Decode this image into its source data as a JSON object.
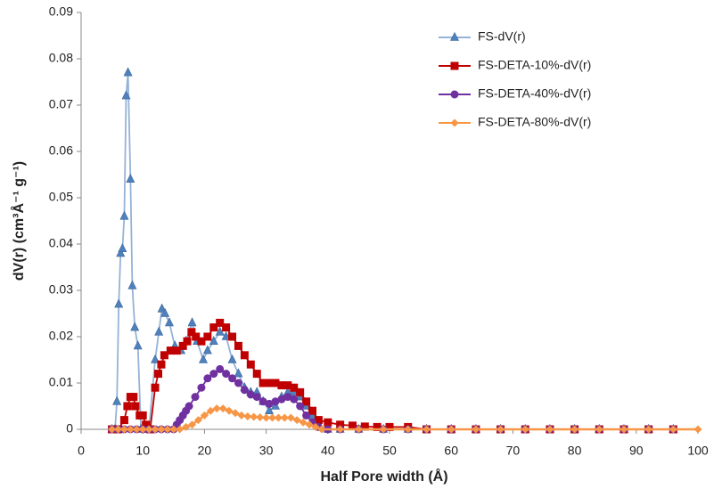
{
  "chart_data": {
    "type": "line",
    "xlabel": "Half Pore width (Å)",
    "ylabel": "dV(r) (cm³Å⁻¹ g⁻¹)",
    "xlim": [
      0,
      100
    ],
    "xticks": [
      0,
      10,
      20,
      30,
      40,
      50,
      60,
      70,
      80,
      90,
      100
    ],
    "ylim": [
      0,
      0.09
    ],
    "yticks": [
      0,
      0.01,
      0.02,
      0.03,
      0.04,
      0.05,
      0.06,
      0.07,
      0.08,
      0.09
    ],
    "legend": "top-right",
    "series": [
      {
        "name": "FS-dV(r)",
        "color": "#4f81bd",
        "line_color": "#95b3d7",
        "marker": "triangle",
        "x": [
          5,
          5.5,
          5.8,
          6.1,
          6.4,
          6.7,
          7,
          7.3,
          7.6,
          8,
          8.3,
          8.7,
          9.2,
          9.7,
          10.5,
          11,
          12,
          12.6,
          13.1,
          13.6,
          14.3,
          15.2,
          16.2,
          17,
          18,
          18.8,
          19.8,
          20.5,
          21.5,
          22.5,
          23.5,
          24.5,
          25.5,
          26.5,
          27.5,
          28.5,
          29.5,
          30.5,
          31.5,
          32.5,
          33.5,
          34.5,
          35.5,
          36.5,
          37.5,
          38.5,
          40,
          42,
          45,
          49,
          53,
          56,
          60,
          64,
          68,
          72,
          76,
          80,
          84,
          88,
          92,
          96
        ],
        "values": [
          0,
          0,
          0.006,
          0.027,
          0.038,
          0.039,
          0.046,
          0.072,
          0.077,
          0.054,
          0.031,
          0.022,
          0.018,
          0,
          0,
          0,
          0.015,
          0.021,
          0.026,
          0.025,
          0.023,
          0.018,
          0.017,
          0.019,
          0.023,
          0.019,
          0.015,
          0.017,
          0.019,
          0.021,
          0.02,
          0.015,
          0.012,
          0.009,
          0.008,
          0.008,
          0.006,
          0.004,
          0.005,
          0.007,
          0.008,
          0.008,
          0.007,
          0.005,
          0.003,
          0.001,
          0,
          0,
          0,
          0,
          0,
          0,
          0,
          0,
          0,
          0,
          0,
          0,
          0,
          0,
          0,
          0
        ]
      },
      {
        "name": "FS-DETA-10%-dV(r)",
        "color": "#c00000",
        "line_color": "#c00000",
        "marker": "square",
        "x": [
          5,
          6,
          7,
          7.5,
          8,
          8.5,
          8.8,
          9.5,
          10,
          10.5,
          11.2,
          12,
          12.5,
          13,
          13.5,
          14.5,
          15.5,
          16.5,
          17.2,
          17.9,
          18.6,
          19.5,
          20.5,
          21.5,
          22.5,
          23.5,
          24.5,
          25.5,
          26.5,
          27.5,
          28.5,
          29.5,
          30.5,
          31.5,
          32.5,
          33.5,
          34.5,
          35.5,
          36.5,
          37.5,
          38.5,
          40,
          42,
          44,
          46,
          48,
          50,
          53,
          56,
          60,
          64,
          68,
          72,
          76,
          80,
          84,
          88,
          92,
          96
        ],
        "values": [
          0,
          0,
          0.002,
          0.005,
          0.007,
          0.007,
          0.005,
          0.003,
          0.003,
          0.001,
          0,
          0.009,
          0.012,
          0.014,
          0.016,
          0.017,
          0.017,
          0.018,
          0.019,
          0.021,
          0.02,
          0.019,
          0.02,
          0.022,
          0.023,
          0.022,
          0.02,
          0.018,
          0.016,
          0.014,
          0.012,
          0.01,
          0.01,
          0.01,
          0.0095,
          0.0095,
          0.009,
          0.008,
          0.006,
          0.004,
          0.002,
          0.0015,
          0.001,
          0.0008,
          0.0006,
          0.0005,
          0.0005,
          0.0005,
          0,
          0,
          0,
          0,
          0,
          0,
          0,
          0,
          0,
          0,
          0
        ]
      },
      {
        "name": "FS-DETA-40%-dV(r)",
        "color": "#7030a0",
        "line_color": "#7030a0",
        "marker": "circle",
        "x": [
          5,
          6,
          7,
          8,
          9,
          10,
          11,
          12,
          13,
          14,
          15,
          15.5,
          16,
          16.5,
          17,
          17.5,
          18.5,
          19.5,
          20.5,
          21.5,
          22.5,
          23.5,
          24.5,
          25.5,
          26.5,
          27.5,
          28.5,
          29.5,
          30.5,
          31.5,
          32.5,
          33.5,
          34.5,
          35.5,
          36.5,
          37.5,
          38.5,
          40,
          42,
          45,
          49,
          53,
          56,
          60,
          64,
          68,
          72,
          76,
          80,
          84,
          88,
          92,
          96
        ],
        "values": [
          0,
          0,
          0,
          0,
          0,
          0,
          0,
          0,
          0,
          0,
          0,
          0.001,
          0.002,
          0.003,
          0.004,
          0.005,
          0.007,
          0.009,
          0.011,
          0.012,
          0.013,
          0.012,
          0.011,
          0.01,
          0.0085,
          0.0075,
          0.007,
          0.006,
          0.0055,
          0.006,
          0.0065,
          0.007,
          0.0065,
          0.005,
          0.003,
          0.0015,
          0.0005,
          0,
          0,
          0,
          0,
          0,
          0,
          0,
          0,
          0,
          0,
          0,
          0,
          0,
          0,
          0,
          0
        ]
      },
      {
        "name": "FS-DETA-80%-dV(r)",
        "color": "#f79646",
        "line_color": "#f79646",
        "marker": "diamond",
        "x": [
          5,
          6,
          7,
          8,
          9,
          10,
          11,
          12,
          13,
          14,
          15,
          16,
          17,
          18,
          19,
          20,
          21,
          22,
          23,
          24,
          25,
          26,
          27,
          28,
          29,
          30,
          31,
          32,
          33,
          34,
          35,
          36,
          37,
          38,
          39,
          42,
          45,
          49,
          53,
          56,
          60,
          64,
          68,
          72,
          76,
          80,
          84,
          88,
          92,
          96,
          100
        ],
        "values": [
          0,
          0,
          0,
          0,
          0,
          0,
          0,
          0,
          0,
          0,
          0,
          0,
          0.0005,
          0.001,
          0.002,
          0.003,
          0.004,
          0.0045,
          0.0045,
          0.004,
          0.0035,
          0.003,
          0.0028,
          0.0027,
          0.0026,
          0.0025,
          0.0025,
          0.0025,
          0.0025,
          0.0025,
          0.002,
          0.0015,
          0.001,
          0.0005,
          0,
          0,
          0,
          0,
          0,
          0,
          0,
          0,
          0,
          0,
          0,
          0,
          0,
          0,
          0,
          0,
          0
        ]
      }
    ]
  }
}
